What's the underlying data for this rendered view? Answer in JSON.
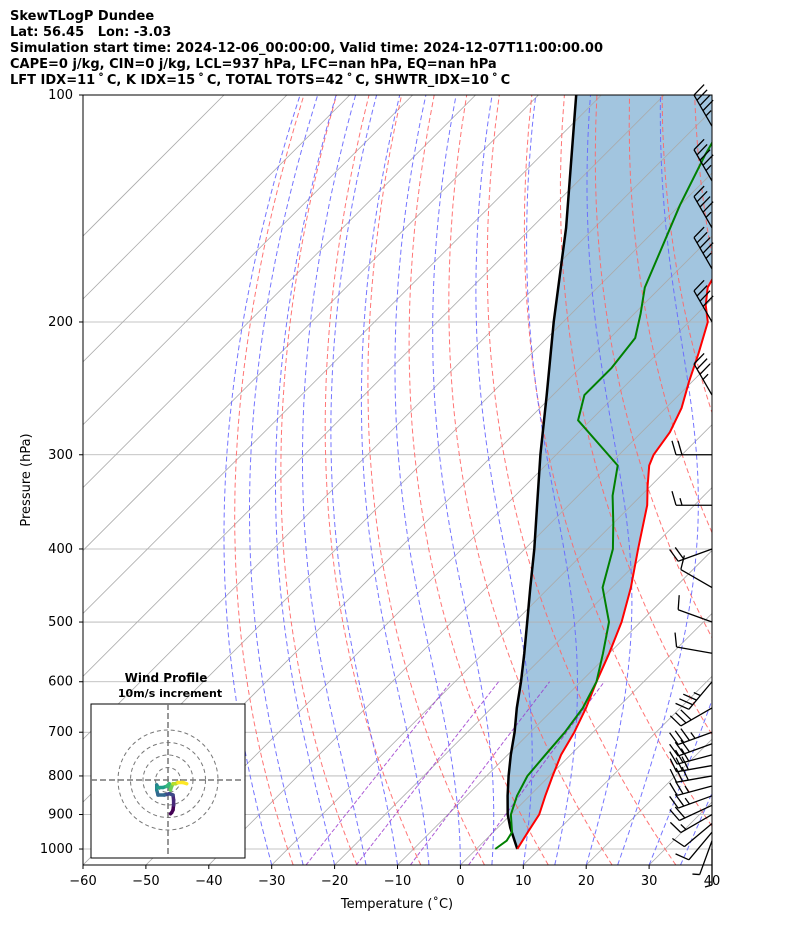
{
  "header": {
    "line1": "SkewTLogP Dundee",
    "line2": "Lat: 56.45   Lon: -3.03",
    "line3": "Simulation start time: 2024-12-06_00:00:00, Valid time: 2024-12-07T11:00:00.00",
    "line4": "CAPE=0 j/kg, CIN=0 j/kg, LCL=937 hPa, LFC=nan hPa, EQ=nan hPa",
    "line5": "LFT IDX=11 ˚ C, K IDX=15 ˚ C, TOTAL TOTS=42 ˚ C, SHWTR_IDX=10 ˚ C"
  },
  "chart_data": {
    "type": "skewt",
    "xlabel": "Temperature (˚C)",
    "ylabel": "Pressure (hPa)",
    "xlim": [
      -60,
      40
    ],
    "plim": [
      1050,
      100
    ],
    "x_ticks": [
      -60,
      -50,
      -40,
      -30,
      -20,
      -10,
      0,
      10,
      20,
      30,
      40
    ],
    "p_ticks": [
      1000,
      900,
      800,
      700,
      600,
      500,
      400,
      300,
      200,
      100
    ],
    "grid": true,
    "colors": {
      "temperature": "#ff0000",
      "dewpoint": "#008000",
      "parcel": "#000000",
      "cin_cape_fill": "#a2c5df",
      "dry_adiabats": "#ff6666",
      "moist_adiabats": "#6666ff",
      "mixing_ratio": "#9933cc",
      "isotherms": "#aaaaaa"
    },
    "temperature": [
      {
        "p": 1000,
        "t": 6.5
      },
      {
        "p": 950,
        "t": 5.5
      },
      {
        "p": 900,
        "t": 4.5
      },
      {
        "p": 850,
        "t": 2.5
      },
      {
        "p": 800,
        "t": 0.5
      },
      {
        "p": 750,
        "t": -1.5
      },
      {
        "p": 700,
        "t": -3.0
      },
      {
        "p": 650,
        "t": -5.0
      },
      {
        "p": 600,
        "t": -7.5
      },
      {
        "p": 550,
        "t": -10.0
      },
      {
        "p": 500,
        "t": -13.0
      },
      {
        "p": 450,
        "t": -17.0
      },
      {
        "p": 400,
        "t": -22.0
      },
      {
        "p": 350,
        "t": -27.5
      },
      {
        "p": 330,
        "t": -30.5
      },
      {
        "p": 310,
        "t": -33.5
      },
      {
        "p": 300,
        "t": -34.5
      },
      {
        "p": 280,
        "t": -35.5
      },
      {
        "p": 260,
        "t": -37.5
      },
      {
        "p": 240,
        "t": -40.5
      },
      {
        "p": 220,
        "t": -43.5
      },
      {
        "p": 200,
        "t": -47.0
      },
      {
        "p": 190,
        "t": -50.0
      },
      {
        "p": 180,
        "t": -52.5
      },
      {
        "p": 165,
        "t": -54.5
      },
      {
        "p": 150,
        "t": -56.5
      },
      {
        "p": 140,
        "t": -57.5
      },
      {
        "p": 125,
        "t": -60.0
      },
      {
        "p": 110,
        "t": -63.0
      },
      {
        "p": 100,
        "t": -64.5
      }
    ],
    "dewpoint": [
      {
        "p": 1000,
        "t": 3.0
      },
      {
        "p": 975,
        "t": 3.5
      },
      {
        "p": 950,
        "t": 3.0
      },
      {
        "p": 900,
        "t": 0.0
      },
      {
        "p": 850,
        "t": -2.0
      },
      {
        "p": 800,
        "t": -3.5
      },
      {
        "p": 750,
        "t": -4.0
      },
      {
        "p": 700,
        "t": -4.5
      },
      {
        "p": 650,
        "t": -5.5
      },
      {
        "p": 600,
        "t": -7.5
      },
      {
        "p": 550,
        "t": -11.0
      },
      {
        "p": 500,
        "t": -15.0
      },
      {
        "p": 450,
        "t": -21.5
      },
      {
        "p": 400,
        "t": -26.0
      },
      {
        "p": 370,
        "t": -30.0
      },
      {
        "p": 340,
        "t": -34.5
      },
      {
        "p": 310,
        "t": -38.5
      },
      {
        "p": 270,
        "t": -52.0
      },
      {
        "p": 250,
        "t": -55.0
      },
      {
        "p": 230,
        "t": -55.0
      },
      {
        "p": 210,
        "t": -56.0
      },
      {
        "p": 195,
        "t": -59.0
      },
      {
        "p": 180,
        "t": -62.5
      },
      {
        "p": 160,
        "t": -66.0
      },
      {
        "p": 140,
        "t": -70.0
      },
      {
        "p": 120,
        "t": -74.0
      },
      {
        "p": 100,
        "t": -78.0
      }
    ],
    "parcel_profile": [
      {
        "p": 1000,
        "t": 6.5
      },
      {
        "p": 937,
        "t": 2.0
      },
      {
        "p": 900,
        "t": -0.5
      },
      {
        "p": 850,
        "t": -3.5
      },
      {
        "p": 800,
        "t": -6.5
      },
      {
        "p": 750,
        "t": -9.5
      },
      {
        "p": 700,
        "t": -12.5
      },
      {
        "p": 650,
        "t": -16.0
      },
      {
        "p": 600,
        "t": -19.5
      },
      {
        "p": 550,
        "t": -23.5
      },
      {
        "p": 500,
        "t": -28.0
      },
      {
        "p": 450,
        "t": -33.0
      },
      {
        "p": 400,
        "t": -38.5
      },
      {
        "p": 350,
        "t": -45.0
      },
      {
        "p": 300,
        "t": -52.5
      },
      {
        "p": 250,
        "t": -61.0
      },
      {
        "p": 200,
        "t": -71.5
      },
      {
        "p": 150,
        "t": -84.5
      },
      {
        "p": 100,
        "t": -104.0
      }
    ],
    "wind_barbs": [
      {
        "p": 1000,
        "speed_kt": 5,
        "dir_deg": 180
      },
      {
        "p": 975,
        "speed_kt": 5,
        "dir_deg": 200
      },
      {
        "p": 950,
        "speed_kt": 10,
        "dir_deg": 220
      },
      {
        "p": 925,
        "speed_kt": 10,
        "dir_deg": 230
      },
      {
        "p": 900,
        "speed_kt": 15,
        "dir_deg": 240
      },
      {
        "p": 875,
        "speed_kt": 20,
        "dir_deg": 245
      },
      {
        "p": 850,
        "speed_kt": 25,
        "dir_deg": 250
      },
      {
        "p": 825,
        "speed_kt": 25,
        "dir_deg": 255
      },
      {
        "p": 800,
        "speed_kt": 30,
        "dir_deg": 260
      },
      {
        "p": 775,
        "speed_kt": 30,
        "dir_deg": 260
      },
      {
        "p": 750,
        "speed_kt": 30,
        "dir_deg": 255
      },
      {
        "p": 725,
        "speed_kt": 30,
        "dir_deg": 250
      },
      {
        "p": 700,
        "speed_kt": 35,
        "dir_deg": 250
      },
      {
        "p": 650,
        "speed_kt": 30,
        "dir_deg": 240
      },
      {
        "p": 600,
        "speed_kt": 35,
        "dir_deg": 220
      },
      {
        "p": 550,
        "speed_kt": 10,
        "dir_deg": 280
      },
      {
        "p": 500,
        "speed_kt": 10,
        "dir_deg": 290
      },
      {
        "p": 450,
        "speed_kt": 10,
        "dir_deg": 300
      },
      {
        "p": 400,
        "speed_kt": 20,
        "dir_deg": 250
      },
      {
        "p": 350,
        "speed_kt": 15,
        "dir_deg": 270
      },
      {
        "p": 300,
        "speed_kt": 20,
        "dir_deg": 270
      },
      {
        "p": 250,
        "speed_kt": 35,
        "dir_deg": 330
      },
      {
        "p": 200,
        "speed_kt": 40,
        "dir_deg": 330
      },
      {
        "p": 170,
        "speed_kt": 45,
        "dir_deg": 330
      },
      {
        "p": 150,
        "speed_kt": 45,
        "dir_deg": 330
      },
      {
        "p": 130,
        "speed_kt": 45,
        "dir_deg": 330
      },
      {
        "p": 110,
        "speed_kt": 45,
        "dir_deg": 330
      }
    ],
    "hodograph": {
      "title": "Wind Profile",
      "subtitle": "10m/s increment",
      "ring_step_ms": 10,
      "points": [
        {
          "u": 2,
          "v": -27
        },
        {
          "u": 3,
          "v": -26
        },
        {
          "u": 4,
          "v": -24
        },
        {
          "u": 4.5,
          "v": -20
        },
        {
          "u": 4.5,
          "v": -16
        },
        {
          "u": 4,
          "v": -12
        },
        {
          "u": 1,
          "v": -11
        },
        {
          "u": -3,
          "v": -12
        },
        {
          "u": -8,
          "v": -12
        },
        {
          "u": -9,
          "v": -8
        },
        {
          "u": -9,
          "v": -4
        },
        {
          "u": -8,
          "v": -6
        },
        {
          "u": -4,
          "v": -6
        },
        {
          "u": -1,
          "v": -5
        },
        {
          "u": 1,
          "v": -3
        },
        {
          "u": 2,
          "v": -8
        },
        {
          "u": 3,
          "v": -5
        },
        {
          "u": 4,
          "v": -3
        },
        {
          "u": 6,
          "v": -3
        },
        {
          "u": 8,
          "v": -2
        },
        {
          "u": 12,
          "v": -2
        },
        {
          "u": 15,
          "v": -3
        }
      ]
    }
  }
}
